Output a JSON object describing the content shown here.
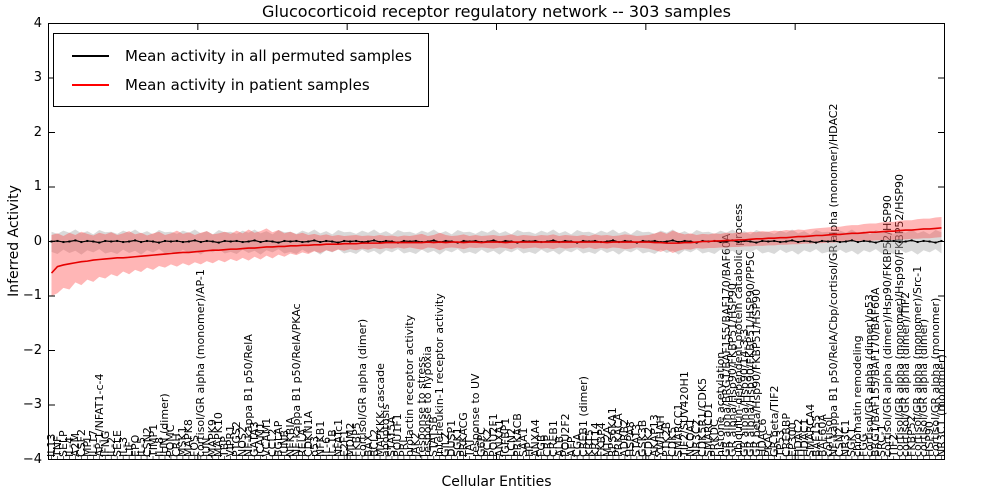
{
  "title": "Glucocorticoid receptor regulatory network -- 303 samples",
  "xlabel": "Cellular Entities",
  "ylabel": "Inferred Activity",
  "legend": [
    {
      "label": "Mean activity in all permuted samples",
      "color": "#000000"
    },
    {
      "label": "Mean activity in patient samples",
      "color": "#ff0000"
    }
  ],
  "colors": {
    "permuted_line": "#000000",
    "patient_line": "#e60000",
    "permuted_band": "#aaaaaa",
    "patient_band": "#ff4040",
    "frame": "#000000"
  },
  "chart_data": {
    "type": "line",
    "title": "Glucocorticoid receptor regulatory network -- 303 samples",
    "xlabel": "Cellular Entities",
    "ylabel": "Inferred Activity",
    "ylim": [
      -4,
      4
    ],
    "yticks": [
      4,
      3,
      2,
      1,
      0,
      -1,
      -2,
      -3,
      -4
    ],
    "x_major_tick_interval": 25,
    "grid": false,
    "legend_position": "upper left",
    "categories": [
      "IL13",
      "TNF",
      "SELP",
      "IL-4",
      "A2M",
      "CSF2",
      "MPL",
      "IL-17",
      "AP-1/NFAT1-c-4",
      "IFNG",
      "IL-2",
      "SELE",
      "IL-3",
      "LIF",
      "EPO",
      "IL-5",
      "CSN2",
      "TIMP1",
      "IL-8",
      "JUN (dimer)",
      "POMC",
      "CRH",
      "MSK1",
      "MAPK8",
      "FOS",
      "cortisol/GR alpha (monomer)/AP-1",
      "JUN",
      "MAPK9",
      "MAPK10",
      "TBP",
      "VIPR1",
      "PTGS2",
      "NOS2",
      "NF-kappa B1 p50/RelA",
      "GATA3",
      "ICAM1",
      "VCAM1",
      "CCL2",
      "BGLAP",
      "JUNB",
      "NFKBIA",
      "NF-kappa B1 p50/RelA/PKAc",
      "RELA",
      "CDKN1A",
      "p53",
      "NFKB1",
      "IL-6",
      "IL-1B",
      "NFATc1",
      "E2F1",
      "MDM2",
      "FKBP5",
      "cortisol/GR alpha (dimer)",
      "BAX",
      "BCL2",
      "MAPKKK cascade",
      "apoptosis",
      "STAT5A",
      "POU1F1",
      "PRL",
      "prolactin receptor activity",
      "JAK2",
      "response to stress",
      "response to hypoxia",
      "STAT5B",
      "interleukin-1 receptor activity",
      "GILZ",
      "DUSP1",
      "SGK1",
      "PRKACG",
      "TAT",
      "response to UV",
      "G6PC",
      "PCK2",
      "POU2F1",
      "ANXA1",
      "IGFBP1",
      "LCN2",
      "PRKACB",
      "SAA1",
      "HP",
      "ANXA4",
      "FGB",
      "CRP",
      "CREB1",
      "ALB",
      "POU2F2",
      "AFP",
      "CGA",
      "CREB1 (dimer)",
      "KRT5",
      "KRT14",
      "FKBP4",
      "MT2A",
      "RPS6KA1",
      "PRKACA",
      "ADRB2",
      "HSPA8",
      "STAT3",
      "GSK3B",
      "CDK2",
      "AKAP13",
      "YWHAH",
      "PTK2B",
      "CDK5",
      "SMARCC1",
      "TIF2/SUV420H1",
      "NCOA1",
      "NR3C2",
      "CDK5R1/CDK5",
      "SMARCD1",
      "PRKDC",
      "histone acetylation",
      "GR alpha/BRG1/BAF155/BAF170/BAF60A",
      "GR alpha/Hsp90/FKBP51/HSP90",
      "ubiquitin-dependent protein catabolic process",
      "GR alpha/Hsp90/14-3-3",
      "GR alpha/Hsp90/FKBP51/HSP90/PP5C",
      "GR beta/Hsp90/FKBP51/HSP90",
      "HDAC6",
      "PKAc",
      "GR beta/TIF2",
      "TP53",
      "CREBBP",
      "EP300",
      "HDAC2",
      "HDAC1",
      "SMARCA4",
      "BAF155",
      "BAF60A",
      "cortisol",
      "NF-kappa B1 p50/RelA/Cbp/cortisol/GR alpha (monomer)/HDAC2",
      "CSN2",
      "NR3C1",
      "SGK1",
      "chromatin remodeling",
      "FGG",
      "cortisol/GR alpha (dimer)/p53",
      "BRG1/BAF155/BAF170/BAF60A",
      "SRC-1",
      "cortisol/GR alpha (dimer)/Hsp90/FKBP52/HSP90",
      "TIF2",
      "cortisol/GR alpha (monomer)/Hsp90/FKBP52/HSP90",
      "cortisol/GR alpha (dimer)/TIF2",
      "FKBP52",
      "cortisol/GR alpha (monomer)/Src-1",
      "cortisol/GR alpha (dimer)",
      "HSP90",
      "cortisol/GR alpha (monomer)",
      "NR3C1 (monomer)"
    ],
    "series": [
      {
        "name": "Mean activity in all permuted samples",
        "color": "#000000",
        "marker": true,
        "values": [
          0.0,
          0.01,
          -0.01,
          0.0,
          0.02,
          -0.01,
          0.01,
          0.0,
          -0.02,
          0.01,
          0.0,
          0.01,
          -0.01,
          0.0,
          0.02,
          -0.01,
          0.01,
          0.0,
          -0.02,
          0.01,
          0.0,
          0.01,
          -0.01,
          0.0,
          0.02,
          -0.01,
          0.01,
          0.0,
          -0.02,
          0.01,
          0.0,
          0.01,
          -0.01,
          0.0,
          0.02,
          -0.01,
          0.01,
          0.0,
          -0.02,
          0.01,
          0.0,
          0.01,
          -0.01,
          0.0,
          0.02,
          -0.01,
          0.01,
          0.0,
          -0.02,
          0.01,
          0.0,
          0.01,
          -0.01,
          0.0,
          0.02,
          -0.01,
          0.01,
          0.0,
          -0.02,
          0.01,
          0.0,
          0.01,
          -0.01,
          0.0,
          0.02,
          -0.01,
          0.01,
          0.0,
          -0.02,
          0.01,
          0.0,
          0.01,
          -0.01,
          0.0,
          0.02,
          -0.01,
          0.01,
          0.0,
          -0.02,
          0.01,
          0.0,
          0.01,
          -0.01,
          0.0,
          0.02,
          -0.01,
          0.01,
          0.0,
          -0.02,
          0.01,
          0.0,
          0.01,
          -0.01,
          0.0,
          0.02,
          -0.01,
          0.01,
          0.0,
          -0.02,
          0.01,
          0.0,
          0.01,
          -0.01,
          0.0,
          0.02,
          -0.01,
          0.01,
          0.0,
          -0.02,
          0.01,
          0.0,
          0.01,
          -0.01,
          0.0,
          0.02,
          -0.01,
          0.01,
          0.0,
          -0.02,
          0.01,
          0.0,
          0.01,
          -0.01,
          0.0,
          0.02,
          -0.01,
          0.01,
          0.0,
          -0.02,
          0.01,
          0.0,
          0.01,
          -0.01,
          0.0,
          0.02,
          -0.01,
          0.01,
          0.0,
          -0.02,
          0.01,
          0.0,
          0.01,
          -0.01,
          0.0,
          0.02,
          -0.01,
          0.01,
          0.0,
          -0.02,
          0.01
        ]
      },
      {
        "name": "Mean activity in patient samples",
        "color": "#e60000",
        "marker": false,
        "values": [
          -0.58,
          -0.46,
          -0.43,
          -0.41,
          -0.39,
          -0.37,
          -0.36,
          -0.34,
          -0.33,
          -0.32,
          -0.31,
          -0.3,
          -0.3,
          -0.29,
          -0.28,
          -0.27,
          -0.26,
          -0.25,
          -0.24,
          -0.23,
          -0.22,
          -0.21,
          -0.2,
          -0.2,
          -0.19,
          -0.18,
          -0.17,
          -0.16,
          -0.16,
          -0.15,
          -0.14,
          -0.14,
          -0.13,
          -0.12,
          -0.12,
          -0.11,
          -0.1,
          -0.1,
          -0.09,
          -0.09,
          -0.08,
          -0.08,
          -0.07,
          -0.07,
          -0.06,
          -0.06,
          -0.05,
          -0.05,
          -0.05,
          -0.04,
          -0.04,
          -0.04,
          -0.03,
          -0.03,
          -0.03,
          -0.03,
          -0.02,
          -0.02,
          -0.02,
          -0.02,
          -0.02,
          -0.02,
          -0.02,
          -0.01,
          -0.02,
          -0.01,
          -0.02,
          -0.01,
          -0.01,
          -0.02,
          -0.01,
          -0.01,
          -0.02,
          -0.01,
          -0.01,
          -0.01,
          -0.02,
          -0.01,
          -0.01,
          -0.01,
          -0.01,
          -0.01,
          -0.01,
          -0.01,
          -0.01,
          -0.01,
          -0.01,
          -0.01,
          -0.01,
          -0.01,
          -0.01,
          -0.01,
          -0.01,
          -0.02,
          -0.01,
          -0.01,
          -0.01,
          -0.01,
          -0.01,
          -0.01,
          -0.01,
          -0.02,
          -0.02,
          -0.03,
          -0.03,
          -0.03,
          -0.02,
          -0.02,
          -0.01,
          0.0,
          0.0,
          0.01,
          0.01,
          0.02,
          0.02,
          0.03,
          0.03,
          0.04,
          0.05,
          0.05,
          0.06,
          0.06,
          0.07,
          0.07,
          0.08,
          0.09,
          0.09,
          0.1,
          0.11,
          0.11,
          0.12,
          0.13,
          0.13,
          0.14,
          0.15,
          0.15,
          0.16,
          0.17,
          0.17,
          0.18,
          0.19,
          0.19,
          0.2,
          0.21,
          0.21,
          0.22,
          0.23,
          0.23,
          0.24,
          0.25
        ]
      }
    ],
    "bands": [
      {
        "name": "permuted samples range",
        "color": "#aaaaaa",
        "opacity": 0.45,
        "upper": [
          0.18,
          0.14,
          0.2,
          0.16,
          0.22,
          0.15,
          0.19,
          0.13,
          0.21,
          0.17,
          0.18,
          0.14,
          0.2,
          0.16,
          0.22,
          0.15,
          0.19,
          0.13,
          0.21,
          0.17,
          0.18,
          0.14,
          0.2,
          0.16,
          0.22,
          0.15,
          0.19,
          0.13,
          0.21,
          0.17,
          0.18,
          0.14,
          0.2,
          0.16,
          0.22,
          0.15,
          0.19,
          0.13,
          0.21,
          0.17,
          0.18,
          0.14,
          0.2,
          0.16,
          0.22,
          0.15,
          0.19,
          0.13,
          0.21,
          0.17,
          0.18,
          0.14,
          0.2,
          0.16,
          0.22,
          0.15,
          0.19,
          0.13,
          0.21,
          0.17,
          0.18,
          0.14,
          0.2,
          0.16,
          0.22,
          0.15,
          0.19,
          0.13,
          0.21,
          0.17,
          0.18,
          0.14,
          0.2,
          0.16,
          0.22,
          0.15,
          0.19,
          0.13,
          0.21,
          0.17,
          0.18,
          0.14,
          0.2,
          0.16,
          0.22,
          0.15,
          0.19,
          0.13,
          0.21,
          0.17,
          0.18,
          0.14,
          0.2,
          0.16,
          0.22,
          0.15,
          0.19,
          0.13,
          0.21,
          0.17,
          0.18,
          0.14,
          0.2,
          0.16,
          0.22,
          0.15,
          0.19,
          0.13,
          0.21,
          0.17,
          0.18,
          0.14,
          0.2,
          0.16,
          0.22,
          0.15,
          0.19,
          0.13,
          0.21,
          0.17,
          0.18,
          0.14,
          0.2,
          0.16,
          0.22,
          0.15,
          0.19,
          0.13,
          0.21,
          0.17,
          0.18,
          0.14,
          0.2,
          0.16,
          0.22,
          0.15,
          0.19,
          0.13,
          0.21,
          0.17,
          0.18,
          0.14,
          0.2,
          0.16,
          0.22,
          0.15,
          0.19,
          0.13,
          0.21,
          0.17
        ],
        "lower": [
          -0.19,
          -0.23,
          -0.15,
          -0.21,
          -0.17,
          -0.24,
          -0.16,
          -0.2,
          -0.14,
          -0.22,
          -0.19,
          -0.23,
          -0.15,
          -0.21,
          -0.17,
          -0.24,
          -0.16,
          -0.2,
          -0.14,
          -0.22,
          -0.19,
          -0.23,
          -0.15,
          -0.21,
          -0.17,
          -0.24,
          -0.16,
          -0.2,
          -0.14,
          -0.22,
          -0.19,
          -0.23,
          -0.15,
          -0.21,
          -0.17,
          -0.24,
          -0.16,
          -0.2,
          -0.14,
          -0.22,
          -0.19,
          -0.23,
          -0.15,
          -0.21,
          -0.17,
          -0.24,
          -0.16,
          -0.2,
          -0.14,
          -0.22,
          -0.19,
          -0.23,
          -0.15,
          -0.21,
          -0.17,
          -0.24,
          -0.16,
          -0.2,
          -0.14,
          -0.22,
          -0.19,
          -0.23,
          -0.15,
          -0.21,
          -0.17,
          -0.24,
          -0.16,
          -0.2,
          -0.14,
          -0.22,
          -0.19,
          -0.23,
          -0.15,
          -0.21,
          -0.17,
          -0.24,
          -0.16,
          -0.2,
          -0.14,
          -0.22,
          -0.19,
          -0.23,
          -0.15,
          -0.21,
          -0.17,
          -0.24,
          -0.16,
          -0.2,
          -0.14,
          -0.22,
          -0.19,
          -0.23,
          -0.15,
          -0.21,
          -0.17,
          -0.24,
          -0.16,
          -0.2,
          -0.14,
          -0.22,
          -0.19,
          -0.23,
          -0.15,
          -0.21,
          -0.17,
          -0.24,
          -0.16,
          -0.2,
          -0.14,
          -0.22,
          -0.19,
          -0.23,
          -0.15,
          -0.21,
          -0.17,
          -0.24,
          -0.16,
          -0.2,
          -0.14,
          -0.22,
          -0.19,
          -0.23,
          -0.15,
          -0.21,
          -0.17,
          -0.24,
          -0.16,
          -0.2,
          -0.14,
          -0.22,
          -0.19,
          -0.23,
          -0.15,
          -0.21,
          -0.17,
          -0.24,
          -0.16,
          -0.2,
          -0.14,
          -0.22,
          -0.19,
          -0.23,
          -0.15,
          -0.21,
          -0.17,
          -0.24,
          -0.16,
          -0.2,
          -0.14,
          -0.22
        ]
      },
      {
        "name": "patient samples range",
        "color": "#ff4040",
        "opacity": 0.38,
        "upper": [
          0.12,
          0.15,
          0.1,
          0.16,
          0.12,
          0.18,
          0.14,
          0.11,
          0.16,
          0.13,
          0.17,
          0.12,
          0.15,
          0.19,
          0.13,
          0.16,
          0.11,
          0.15,
          0.18,
          0.12,
          0.15,
          0.2,
          0.14,
          0.17,
          0.12,
          0.16,
          0.19,
          0.13,
          0.15,
          0.18,
          0.14,
          0.2,
          0.15,
          0.22,
          0.16,
          0.19,
          0.24,
          0.17,
          0.21,
          0.15,
          0.18,
          0.13,
          0.16,
          0.12,
          0.14,
          0.11,
          0.13,
          0.1,
          0.12,
          0.1,
          0.11,
          0.12,
          0.1,
          0.11,
          0.1,
          0.12,
          0.1,
          0.11,
          0.09,
          0.11,
          0.1,
          0.12,
          0.14,
          0.1,
          0.12,
          0.16,
          0.12,
          0.1,
          0.11,
          0.13,
          0.1,
          0.12,
          0.1,
          0.11,
          0.12,
          0.1,
          0.11,
          0.13,
          0.1,
          0.12,
          0.11,
          0.1,
          0.12,
          0.11,
          0.13,
          0.1,
          0.12,
          0.11,
          0.1,
          0.12,
          0.1,
          0.13,
          0.11,
          0.12,
          0.1,
          0.11,
          0.13,
          0.12,
          0.1,
          0.11,
          0.12,
          0.15,
          0.18,
          0.14,
          0.2,
          0.16,
          0.13,
          0.15,
          0.12,
          0.14,
          0.13,
          0.15,
          0.14,
          0.16,
          0.15,
          0.17,
          0.16,
          0.18,
          0.17,
          0.19,
          0.18,
          0.2,
          0.19,
          0.21,
          0.2,
          0.22,
          0.21,
          0.23,
          0.24,
          0.25,
          0.26,
          0.27,
          0.27,
          0.29,
          0.3,
          0.3,
          0.32,
          0.33,
          0.33,
          0.35,
          0.36,
          0.36,
          0.38,
          0.39,
          0.39,
          0.41,
          0.42,
          0.42,
          0.44,
          0.45
        ],
        "lower": [
          -1.0,
          -0.95,
          -0.85,
          -0.88,
          -0.75,
          -0.8,
          -0.7,
          -0.74,
          -0.65,
          -0.68,
          -0.6,
          -0.64,
          -0.55,
          -0.6,
          -0.52,
          -0.56,
          -0.48,
          -0.52,
          -0.45,
          -0.48,
          -0.42,
          -0.46,
          -0.4,
          -0.44,
          -0.38,
          -0.42,
          -0.36,
          -0.4,
          -0.34,
          -0.38,
          -0.32,
          -0.36,
          -0.3,
          -0.35,
          -0.28,
          -0.33,
          -0.26,
          -0.31,
          -0.24,
          -0.28,
          -0.22,
          -0.25,
          -0.2,
          -0.23,
          -0.18,
          -0.21,
          -0.16,
          -0.19,
          -0.15,
          -0.17,
          -0.14,
          -0.16,
          -0.13,
          -0.15,
          -0.12,
          -0.14,
          -0.12,
          -0.13,
          -0.11,
          -0.13,
          -0.11,
          -0.13,
          -0.15,
          -0.11,
          -0.12,
          -0.16,
          -0.12,
          -0.11,
          -0.12,
          -0.14,
          -0.11,
          -0.12,
          -0.11,
          -0.12,
          -0.13,
          -0.11,
          -0.12,
          -0.14,
          -0.11,
          -0.13,
          -0.12,
          -0.11,
          -0.13,
          -0.12,
          -0.14,
          -0.11,
          -0.13,
          -0.12,
          -0.11,
          -0.13,
          -0.11,
          -0.14,
          -0.12,
          -0.13,
          -0.11,
          -0.12,
          -0.14,
          -0.13,
          -0.11,
          -0.12,
          -0.13,
          -0.16,
          -0.19,
          -0.15,
          -0.21,
          -0.17,
          -0.14,
          -0.15,
          -0.12,
          -0.13,
          -0.12,
          -0.12,
          -0.11,
          -0.11,
          -0.1,
          -0.1,
          -0.09,
          -0.09,
          -0.08,
          -0.08,
          -0.07,
          -0.07,
          -0.06,
          -0.06,
          -0.05,
          -0.05,
          -0.04,
          -0.04,
          -0.03,
          -0.03,
          -0.02,
          -0.02,
          -0.01,
          -0.01,
          0.0,
          0.0,
          0.01,
          0.01,
          0.02,
          0.02,
          0.03,
          0.03,
          0.04,
          0.04,
          0.05,
          0.05,
          0.06,
          0.06,
          0.07,
          0.08
        ]
      }
    ]
  }
}
